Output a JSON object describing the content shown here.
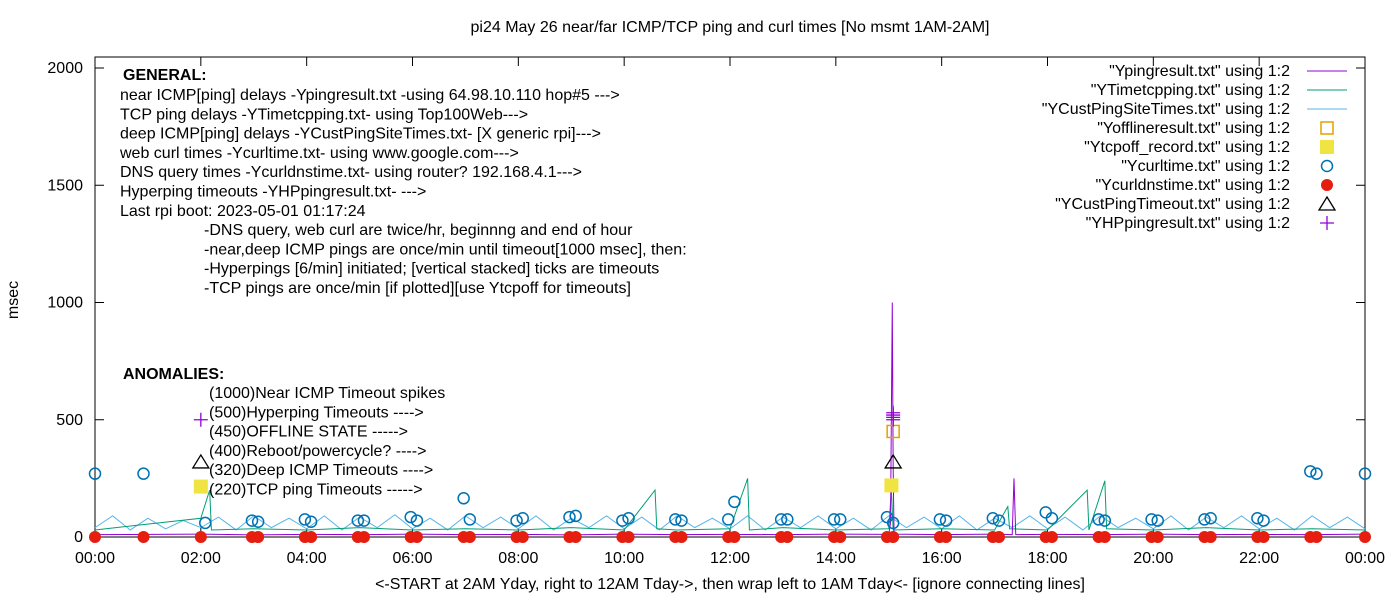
{
  "chart_data": {
    "type": "line",
    "title": "pi24 May 26  near/far ICMP/TCP ping and curl times [No msmt 1AM-2AM]",
    "xlabel": "<-START at 2AM Yday, right to 12AM Tday->, then wrap left to 1AM Tday<- [ignore connecting lines]",
    "ylabel": "msec",
    "xlim": [
      "00:00",
      "24:00"
    ],
    "ylim": [
      0,
      2050
    ],
    "x_ticks": [
      "00:00",
      "02:00",
      "04:00",
      "06:00",
      "08:00",
      "10:00",
      "12:00",
      "14:00",
      "16:00",
      "18:00",
      "20:00",
      "22:00",
      "00:00"
    ],
    "y_ticks": [
      0,
      500,
      1000,
      1500,
      2000
    ],
    "grid": false,
    "legend_position": "top-right",
    "general_notes": {
      "heading": "GENERAL:",
      "lines": [
        "near ICMP[ping] delays -Ypingresult.txt -using 64.98.10.110 hop#5 --->",
        "TCP ping delays -YTimetcpping.txt- using Top100Web--->",
        "deep ICMP[ping] delays -YCustPingSiteTimes.txt- [X generic rpi]--->",
        "web curl times -Ycurltime.txt- using www.google.com--->",
        "DNS query times -Ycurldnstime.txt- using router? 192.168.4.1--->",
        "Hyperping timeouts -YHPpingresult.txt- --->",
        "Last rpi boot: 2023-05-01 01:17:24"
      ],
      "indented": [
        "-DNS query, web curl are twice/hr, beginnng and end of hour",
        "-near,deep ICMP pings are once/min until timeout[1000 msec], then:",
        "  -Hyperpings [6/min] initiated; [vertical stacked] ticks are timeouts",
        "-TCP pings are once/min [if plotted][use Ytcpoff for timeouts]"
      ]
    },
    "anomalies": {
      "heading": "ANOMALIES:",
      "lines": [
        "(1000)Near ICMP Timeout spikes",
        "(500)Hyperping Timeouts ---->",
        "(450)OFFLINE STATE ----->",
        "(400)Reboot/powercycle? ---->",
        "(320)Deep ICMP Timeouts ---->",
        "(220)TCP ping Timeouts ----->"
      ]
    },
    "series": [
      {
        "name": "\"Ypingresult.txt\" using 1:2",
        "style": "line",
        "color": "#9400d3",
        "points": [
          [
            "00:00",
            10
          ],
          [
            "02:00",
            12
          ],
          [
            "03:00",
            9
          ],
          [
            "04:00",
            11
          ],
          [
            "05:00",
            10
          ],
          [
            "06:00",
            12
          ],
          [
            "07:00",
            10
          ],
          [
            "08:00",
            11
          ],
          [
            "09:00",
            9
          ],
          [
            "10:00",
            12
          ],
          [
            "11:00",
            10
          ],
          [
            "12:00",
            11
          ],
          [
            "13:00",
            10
          ],
          [
            "14:00",
            12
          ],
          [
            "15:00",
            11
          ],
          [
            "15:02",
            60
          ],
          [
            "15:04",
            1000
          ],
          [
            "15:05",
            300
          ],
          [
            "15:06",
            12
          ],
          [
            "16:00",
            10
          ],
          [
            "17:00",
            12
          ],
          [
            "17:20",
            10
          ],
          [
            "17:22",
            250
          ],
          [
            "17:24",
            10
          ],
          [
            "18:00",
            11
          ],
          [
            "19:00",
            10
          ],
          [
            "20:00",
            12
          ],
          [
            "21:00",
            10
          ],
          [
            "22:00",
            11
          ],
          [
            "23:00",
            10
          ],
          [
            "24:00",
            12
          ]
        ]
      },
      {
        "name": "\"YTimetcpping.txt\" using 1:2",
        "style": "line",
        "color": "#009e73",
        "points": [
          [
            "00:00",
            30
          ],
          [
            "02:00",
            80
          ],
          [
            "02:10",
            200
          ],
          [
            "02:12",
            30
          ],
          [
            "03:00",
            35
          ],
          [
            "04:00",
            30
          ],
          [
            "05:00",
            40
          ],
          [
            "06:00",
            30
          ],
          [
            "07:00",
            35
          ],
          [
            "08:00",
            30
          ],
          [
            "09:00",
            40
          ],
          [
            "10:00",
            30
          ],
          [
            "10:35",
            200
          ],
          [
            "10:37",
            35
          ],
          [
            "11:00",
            30
          ],
          [
            "12:00",
            35
          ],
          [
            "12:20",
            250
          ],
          [
            "12:22",
            30
          ],
          [
            "13:00",
            40
          ],
          [
            "14:00",
            30
          ],
          [
            "15:00",
            35
          ],
          [
            "15:03",
            200
          ],
          [
            "15:05",
            30
          ],
          [
            "16:00",
            35
          ],
          [
            "17:00",
            30
          ],
          [
            "17:15",
            130
          ],
          [
            "17:17",
            35
          ],
          [
            "18:00",
            30
          ],
          [
            "18:45",
            200
          ],
          [
            "18:47",
            30
          ],
          [
            "19:05",
            240
          ],
          [
            "19:07",
            35
          ],
          [
            "20:00",
            30
          ],
          [
            "21:00",
            40
          ],
          [
            "22:00",
            30
          ],
          [
            "23:00",
            35
          ],
          [
            "24:00",
            30
          ]
        ]
      },
      {
        "name": "\"YCustPingSiteTimes.txt\" using 1:2",
        "style": "line",
        "color": "#56b4e9",
        "points": [
          [
            "00:00",
            40
          ],
          [
            "00:20",
            90
          ],
          [
            "00:40",
            30
          ],
          [
            "01:00",
            80
          ],
          [
            "01:20",
            35
          ],
          [
            "01:40",
            70
          ],
          [
            "02:00",
            40
          ],
          [
            "02:20",
            85
          ],
          [
            "02:40",
            30
          ],
          [
            "03:00",
            90
          ],
          [
            "03:20",
            40
          ],
          [
            "03:40",
            80
          ],
          [
            "04:00",
            35
          ],
          [
            "04:20",
            90
          ],
          [
            "04:40",
            30
          ],
          [
            "05:00",
            85
          ],
          [
            "05:20",
            40
          ],
          [
            "05:40",
            95
          ],
          [
            "06:00",
            35
          ],
          [
            "06:20",
            80
          ],
          [
            "06:40",
            30
          ],
          [
            "07:00",
            90
          ],
          [
            "07:20",
            40
          ],
          [
            "07:40",
            85
          ],
          [
            "08:00",
            35
          ],
          [
            "08:20",
            90
          ],
          [
            "08:40",
            30
          ],
          [
            "09:00",
            80
          ],
          [
            "09:20",
            40
          ],
          [
            "09:40",
            90
          ],
          [
            "10:00",
            35
          ],
          [
            "10:20",
            85
          ],
          [
            "10:40",
            30
          ],
          [
            "11:00",
            90
          ],
          [
            "11:20",
            40
          ],
          [
            "11:40",
            80
          ],
          [
            "12:00",
            35
          ],
          [
            "12:20",
            90
          ],
          [
            "12:40",
            30
          ],
          [
            "13:00",
            85
          ],
          [
            "13:20",
            40
          ],
          [
            "13:40",
            90
          ],
          [
            "14:00",
            35
          ],
          [
            "14:20",
            80
          ],
          [
            "14:40",
            30
          ],
          [
            "15:00",
            90
          ],
          [
            "15:20",
            40
          ],
          [
            "15:40",
            85
          ],
          [
            "16:00",
            35
          ],
          [
            "16:20",
            90
          ],
          [
            "16:40",
            30
          ],
          [
            "17:00",
            80
          ],
          [
            "17:20",
            40
          ],
          [
            "17:40",
            90
          ],
          [
            "18:00",
            35
          ],
          [
            "18:20",
            85
          ],
          [
            "18:40",
            30
          ],
          [
            "19:00",
            90
          ],
          [
            "19:20",
            40
          ],
          [
            "19:40",
            80
          ],
          [
            "20:00",
            35
          ],
          [
            "20:20",
            90
          ],
          [
            "20:40",
            30
          ],
          [
            "21:00",
            85
          ],
          [
            "21:20",
            40
          ],
          [
            "21:40",
            90
          ],
          [
            "22:00",
            35
          ],
          [
            "22:20",
            80
          ],
          [
            "22:40",
            30
          ],
          [
            "23:00",
            90
          ],
          [
            "23:20",
            40
          ],
          [
            "23:40",
            85
          ],
          [
            "24:00",
            35
          ]
        ]
      },
      {
        "name": "\"Yofflineresult.txt\" using 1:2",
        "style": "open-square",
        "color": "#e69f00",
        "points": [
          [
            "15:05",
            450
          ]
        ]
      },
      {
        "name": "\"Ytcpoff_record.txt\" using 1:2",
        "style": "filled-square",
        "color": "#f0e442",
        "points": [
          [
            "02:00",
            215
          ],
          [
            "15:03",
            220
          ]
        ]
      },
      {
        "name": "\"Ycurltime.txt\" using 1:2",
        "style": "open-circle",
        "color": "#0072b2",
        "points": [
          [
            "00:00",
            270
          ],
          [
            "00:55",
            270
          ],
          [
            "02:05",
            60
          ],
          [
            "02:58",
            70
          ],
          [
            "03:05",
            65
          ],
          [
            "03:58",
            75
          ],
          [
            "04:05",
            65
          ],
          [
            "04:58",
            70
          ],
          [
            "05:05",
            70
          ],
          [
            "05:58",
            85
          ],
          [
            "06:05",
            70
          ],
          [
            "06:58",
            165
          ],
          [
            "07:05",
            75
          ],
          [
            "07:58",
            70
          ],
          [
            "08:05",
            80
          ],
          [
            "08:58",
            85
          ],
          [
            "09:05",
            90
          ],
          [
            "09:58",
            70
          ],
          [
            "10:05",
            80
          ],
          [
            "10:58",
            75
          ],
          [
            "11:05",
            70
          ],
          [
            "11:58",
            75
          ],
          [
            "12:05",
            150
          ],
          [
            "12:58",
            75
          ],
          [
            "13:05",
            75
          ],
          [
            "13:58",
            75
          ],
          [
            "14:05",
            75
          ],
          [
            "14:58",
            85
          ],
          [
            "15:05",
            60
          ],
          [
            "15:58",
            75
          ],
          [
            "16:05",
            70
          ],
          [
            "16:58",
            80
          ],
          [
            "17:05",
            70
          ],
          [
            "17:58",
            105
          ],
          [
            "18:05",
            80
          ],
          [
            "18:58",
            75
          ],
          [
            "19:05",
            70
          ],
          [
            "19:58",
            75
          ],
          [
            "20:05",
            70
          ],
          [
            "20:58",
            75
          ],
          [
            "21:05",
            80
          ],
          [
            "21:58",
            80
          ],
          [
            "22:05",
            70
          ],
          [
            "22:58",
            280
          ],
          [
            "23:05",
            270
          ],
          [
            "24:00",
            270
          ]
        ]
      },
      {
        "name": "\"Ycurldnstime.txt\" using 1:2",
        "style": "filled-circle",
        "color": "#e51e10",
        "points": [
          [
            "00:00",
            0
          ],
          [
            "00:55",
            0
          ],
          [
            "02:00",
            0
          ],
          [
            "02:58",
            0
          ],
          [
            "03:05",
            0
          ],
          [
            "03:58",
            0
          ],
          [
            "04:05",
            0
          ],
          [
            "04:58",
            0
          ],
          [
            "05:05",
            0
          ],
          [
            "05:58",
            0
          ],
          [
            "06:05",
            0
          ],
          [
            "06:58",
            0
          ],
          [
            "07:05",
            0
          ],
          [
            "07:58",
            0
          ],
          [
            "08:05",
            0
          ],
          [
            "08:58",
            0
          ],
          [
            "09:05",
            0
          ],
          [
            "09:58",
            0
          ],
          [
            "10:05",
            0
          ],
          [
            "10:58",
            0
          ],
          [
            "11:05",
            0
          ],
          [
            "11:58",
            0
          ],
          [
            "12:05",
            0
          ],
          [
            "12:58",
            0
          ],
          [
            "13:05",
            0
          ],
          [
            "13:58",
            0
          ],
          [
            "14:05",
            0
          ],
          [
            "14:58",
            0
          ],
          [
            "15:05",
            0
          ],
          [
            "15:58",
            0
          ],
          [
            "16:05",
            0
          ],
          [
            "16:58",
            0
          ],
          [
            "17:05",
            0
          ],
          [
            "17:58",
            0
          ],
          [
            "18:05",
            0
          ],
          [
            "18:58",
            0
          ],
          [
            "19:05",
            0
          ],
          [
            "19:58",
            0
          ],
          [
            "20:05",
            0
          ],
          [
            "20:58",
            0
          ],
          [
            "21:05",
            0
          ],
          [
            "21:58",
            0
          ],
          [
            "22:05",
            0
          ],
          [
            "22:58",
            0
          ],
          [
            "23:05",
            0
          ],
          [
            "24:00",
            0
          ]
        ]
      },
      {
        "name": "\"YCustPingTimeout.txt\" using 1:2",
        "style": "open-triangle",
        "color": "#000000",
        "points": [
          [
            "02:00",
            320
          ],
          [
            "15:05",
            320
          ]
        ]
      },
      {
        "name": "\"YHPpingresult.txt\" using 1:2",
        "style": "plus",
        "color": "#9400d3",
        "points": [
          [
            "02:00",
            500
          ],
          [
            "15:05",
            500
          ],
          [
            "15:05",
            510
          ],
          [
            "15:05",
            520
          ],
          [
            "15:05",
            530
          ]
        ]
      }
    ]
  }
}
